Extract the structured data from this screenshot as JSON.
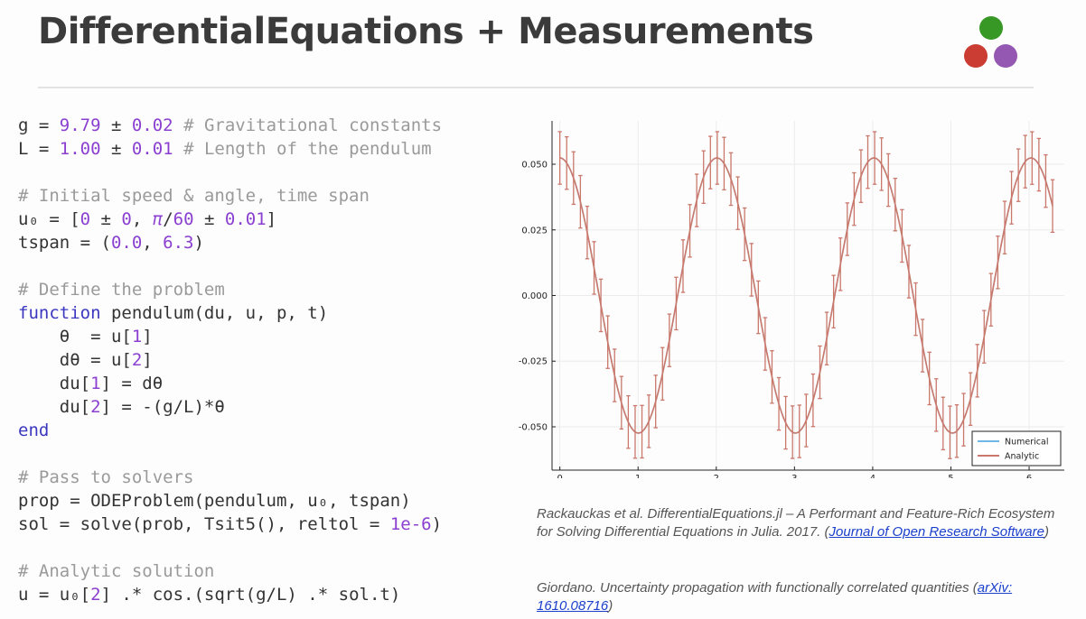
{
  "slide": {
    "title": "DifferentialEquations + Measurements"
  },
  "logo": {
    "colors": [
      "#389826",
      "#cb3c33",
      "#9558b2"
    ]
  },
  "theme": {
    "keyword": "#3b38c0",
    "number": "#8b3fd0",
    "comment": "#9a9a9a",
    "plain": "#333333",
    "analytic_series": "#c9786b",
    "numerical_series": "#6fb7e6",
    "link": "#1a3fcc"
  },
  "code_lines": [
    [
      {
        "t": "g = ",
        "c": "plain"
      },
      {
        "t": "9.79",
        "c": "number"
      },
      {
        "t": " ± ",
        "c": "plain"
      },
      {
        "t": "0.02",
        "c": "number"
      },
      {
        "t": " # Gravitational constants",
        "c": "comment"
      }
    ],
    [
      {
        "t": "L = ",
        "c": "plain"
      },
      {
        "t": "1.00",
        "c": "number"
      },
      {
        "t": " ± ",
        "c": "plain"
      },
      {
        "t": "0.01",
        "c": "number"
      },
      {
        "t": " # Length of the pendulum",
        "c": "comment"
      }
    ],
    [],
    [
      {
        "t": "# Initial speed & angle, time span",
        "c": "comment"
      }
    ],
    [
      {
        "t": "u₀ = [",
        "c": "plain"
      },
      {
        "t": "0",
        "c": "number"
      },
      {
        "t": " ± ",
        "c": "plain"
      },
      {
        "t": "0",
        "c": "number"
      },
      {
        "t": ", ",
        "c": "plain"
      },
      {
        "t": "π",
        "c": "number",
        "i": true
      },
      {
        "t": "/",
        "c": "plain"
      },
      {
        "t": "60",
        "c": "number"
      },
      {
        "t": " ± ",
        "c": "plain"
      },
      {
        "t": "0.01",
        "c": "number"
      },
      {
        "t": "]",
        "c": "plain"
      }
    ],
    [
      {
        "t": "tspan = (",
        "c": "plain"
      },
      {
        "t": "0.0",
        "c": "number"
      },
      {
        "t": ", ",
        "c": "plain"
      },
      {
        "t": "6.3",
        "c": "number"
      },
      {
        "t": ")",
        "c": "plain"
      }
    ],
    [],
    [
      {
        "t": "# Define the problem",
        "c": "comment"
      }
    ],
    [
      {
        "t": "function",
        "c": "keyword"
      },
      {
        "t": " pendulum(du, u, p, t)",
        "c": "plain"
      }
    ],
    [
      {
        "t": "    θ  = u[",
        "c": "plain"
      },
      {
        "t": "1",
        "c": "number"
      },
      {
        "t": "]",
        "c": "plain"
      }
    ],
    [
      {
        "t": "    dθ = u[",
        "c": "plain"
      },
      {
        "t": "2",
        "c": "number"
      },
      {
        "t": "]",
        "c": "plain"
      }
    ],
    [
      {
        "t": "    du[",
        "c": "plain"
      },
      {
        "t": "1",
        "c": "number"
      },
      {
        "t": "] = dθ",
        "c": "plain"
      }
    ],
    [
      {
        "t": "    du[",
        "c": "plain"
      },
      {
        "t": "2",
        "c": "number"
      },
      {
        "t": "] = -(g/L)*θ",
        "c": "plain"
      }
    ],
    [
      {
        "t": "end",
        "c": "keyword"
      }
    ],
    [],
    [
      {
        "t": "# Pass to solvers",
        "c": "comment"
      }
    ],
    [
      {
        "t": "prop = ODEProblem(pendulum, u₀, tspan)",
        "c": "plain"
      }
    ],
    [
      {
        "t": "sol = solve(prob, Tsit5(), reltol = ",
        "c": "plain"
      },
      {
        "t": "1e-6",
        "c": "number"
      },
      {
        "t": ")",
        "c": "plain"
      }
    ],
    [],
    [
      {
        "t": "# Analytic solution",
        "c": "comment"
      }
    ],
    [
      {
        "t": "u = u₀[",
        "c": "plain"
      },
      {
        "t": "2",
        "c": "number"
      },
      {
        "t": "] .* cos.(sqrt(g/L) .* sol.t)",
        "c": "plain"
      }
    ]
  ],
  "chart_data": {
    "type": "line",
    "title": "",
    "xlabel": "",
    "ylabel": "",
    "xlim": [
      -0.1,
      6.45
    ],
    "ylim": [
      -0.0665,
      0.0665
    ],
    "xticks": [
      0,
      1,
      2,
      3,
      4,
      5,
      6
    ],
    "yticks": [
      0.05,
      0.025,
      0.0,
      -0.025,
      -0.05
    ],
    "ytick_labels": [
      "0.050",
      "0.025",
      "0.000",
      "-0.025",
      "-0.050"
    ],
    "grid": true,
    "legend_position": "bottom-right",
    "legend": [
      "Numerical",
      "Analytic"
    ],
    "series": [
      {
        "name": "Numerical",
        "amplitude": 0.0524,
        "angular_frequency": 3.1289,
        "t_start": 0.0,
        "t_end": 6.3,
        "error_half_width": 0.01
      },
      {
        "name": "Analytic",
        "amplitude": 0.0524,
        "angular_frequency": 3.1289,
        "t_start": 0.0,
        "t_end": 6.3,
        "error_half_width": 0.01
      }
    ]
  },
  "citations": [
    {
      "text": "Rackauckas et al. DifferentialEquations.jl – A Performant and Feature-Rich Ecosystem for Solving Differential Equations in Julia. 2017. (",
      "link": "Journal of Open Research Software",
      "after": ")"
    },
    {
      "text": "Giordano. Uncertainty propagation with functionally correlated quantities (",
      "link": "arXiv: 1610.08716",
      "after": ")"
    }
  ]
}
